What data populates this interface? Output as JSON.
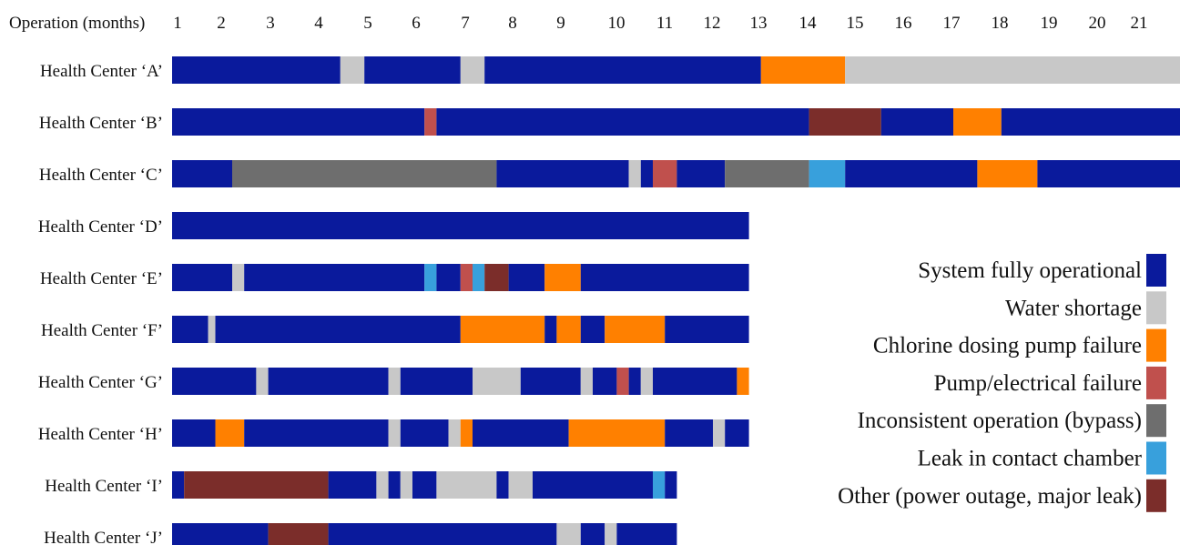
{
  "chart_data": {
    "type": "bar",
    "subtype": "stacked-horizontal-timeline",
    "title": "",
    "xlabel": "Operation (months)",
    "ylabel": "",
    "xlim": [
      1,
      22
    ],
    "x_ticks": [
      1,
      2,
      3,
      4,
      5,
      6,
      7,
      8,
      9,
      10,
      11,
      12,
      13,
      14,
      15,
      16,
      17,
      18,
      19,
      20,
      21
    ],
    "grid": false,
    "legend_position": "bottom-right",
    "statuses": [
      {
        "key": "operational",
        "label": "System fully operational",
        "color": "#0a1a9c"
      },
      {
        "key": "water",
        "label": "Water shortage",
        "color": "#c8c8c8"
      },
      {
        "key": "chlorine",
        "label": "Chlorine dosing pump failure",
        "color": "#ff8000"
      },
      {
        "key": "pump",
        "label": "Pump/electrical failure",
        "color": "#c0504d"
      },
      {
        "key": "bypass",
        "label": "Inconsistent operation (bypass)",
        "color": "#6e6e6e"
      },
      {
        "key": "leak",
        "label": "Leak in contact chamber",
        "color": "#38a0dc"
      },
      {
        "key": "other",
        "label": "Other (power outage, major leak)",
        "color": "#7b2d2a"
      }
    ],
    "rows": [
      {
        "label": "Health Center ‘A’",
        "segments": [
          {
            "start": 1.0,
            "end": 4.5,
            "status": "operational"
          },
          {
            "start": 4.5,
            "end": 5.0,
            "status": "water"
          },
          {
            "start": 5.0,
            "end": 7.0,
            "status": "operational"
          },
          {
            "start": 7.0,
            "end": 7.5,
            "status": "water"
          },
          {
            "start": 7.5,
            "end": 13.25,
            "status": "operational"
          },
          {
            "start": 13.25,
            "end": 15.0,
            "status": "chlorine"
          },
          {
            "start": 15.0,
            "end": 22.0,
            "status": "water"
          }
        ]
      },
      {
        "label": "Health Center ‘B’",
        "segments": [
          {
            "start": 1.0,
            "end": 6.25,
            "status": "operational"
          },
          {
            "start": 6.25,
            "end": 6.5,
            "status": "pump"
          },
          {
            "start": 6.5,
            "end": 14.25,
            "status": "operational"
          },
          {
            "start": 14.25,
            "end": 15.75,
            "status": "other"
          },
          {
            "start": 15.75,
            "end": 17.25,
            "status": "operational"
          },
          {
            "start": 17.25,
            "end": 18.25,
            "status": "chlorine"
          },
          {
            "start": 18.25,
            "end": 22.0,
            "status": "operational"
          }
        ]
      },
      {
        "label": "Health Center ‘C’",
        "segments": [
          {
            "start": 1.0,
            "end": 2.25,
            "status": "operational"
          },
          {
            "start": 2.25,
            "end": 7.75,
            "status": "bypass"
          },
          {
            "start": 7.75,
            "end": 10.5,
            "status": "operational"
          },
          {
            "start": 10.5,
            "end": 10.75,
            "status": "water"
          },
          {
            "start": 10.75,
            "end": 11.0,
            "status": "operational"
          },
          {
            "start": 11.0,
            "end": 11.5,
            "status": "pump"
          },
          {
            "start": 11.5,
            "end": 12.5,
            "status": "operational"
          },
          {
            "start": 12.5,
            "end": 14.25,
            "status": "bypass"
          },
          {
            "start": 14.25,
            "end": 15.0,
            "status": "leak"
          },
          {
            "start": 15.0,
            "end": 17.75,
            "status": "operational"
          },
          {
            "start": 17.75,
            "end": 19.0,
            "status": "chlorine"
          },
          {
            "start": 19.0,
            "end": 22.0,
            "status": "operational"
          }
        ]
      },
      {
        "label": "Health Center ‘D’",
        "segments": [
          {
            "start": 1.0,
            "end": 13.0,
            "status": "operational"
          }
        ]
      },
      {
        "label": "Health Center ‘E’",
        "segments": [
          {
            "start": 1.0,
            "end": 2.25,
            "status": "operational"
          },
          {
            "start": 2.25,
            "end": 2.5,
            "status": "water"
          },
          {
            "start": 2.5,
            "end": 6.25,
            "status": "operational"
          },
          {
            "start": 6.25,
            "end": 6.5,
            "status": "leak"
          },
          {
            "start": 6.5,
            "end": 7.0,
            "status": "operational"
          },
          {
            "start": 7.0,
            "end": 7.25,
            "status": "pump"
          },
          {
            "start": 7.25,
            "end": 7.5,
            "status": "leak"
          },
          {
            "start": 7.5,
            "end": 8.0,
            "status": "other"
          },
          {
            "start": 8.0,
            "end": 8.75,
            "status": "operational"
          },
          {
            "start": 8.75,
            "end": 9.5,
            "status": "chlorine"
          },
          {
            "start": 9.5,
            "end": 13.0,
            "status": "operational"
          }
        ]
      },
      {
        "label": "Health Center ‘F’",
        "segments": [
          {
            "start": 1.0,
            "end": 1.75,
            "status": "operational"
          },
          {
            "start": 1.75,
            "end": 1.9,
            "status": "water"
          },
          {
            "start": 1.9,
            "end": 7.0,
            "status": "operational"
          },
          {
            "start": 7.0,
            "end": 8.75,
            "status": "chlorine"
          },
          {
            "start": 8.75,
            "end": 9.0,
            "status": "operational"
          },
          {
            "start": 9.0,
            "end": 9.5,
            "status": "chlorine"
          },
          {
            "start": 9.5,
            "end": 10.0,
            "status": "operational"
          },
          {
            "start": 10.0,
            "end": 11.25,
            "status": "chlorine"
          },
          {
            "start": 11.25,
            "end": 13.0,
            "status": "operational"
          }
        ]
      },
      {
        "label": "Health Center ‘G’",
        "segments": [
          {
            "start": 1.0,
            "end": 2.75,
            "status": "operational"
          },
          {
            "start": 2.75,
            "end": 3.0,
            "status": "water"
          },
          {
            "start": 3.0,
            "end": 5.5,
            "status": "operational"
          },
          {
            "start": 5.5,
            "end": 5.75,
            "status": "water"
          },
          {
            "start": 5.75,
            "end": 7.25,
            "status": "operational"
          },
          {
            "start": 7.25,
            "end": 8.25,
            "status": "water"
          },
          {
            "start": 8.25,
            "end": 9.5,
            "status": "operational"
          },
          {
            "start": 9.5,
            "end": 9.75,
            "status": "water"
          },
          {
            "start": 9.75,
            "end": 10.25,
            "status": "operational"
          },
          {
            "start": 10.25,
            "end": 10.5,
            "status": "pump"
          },
          {
            "start": 10.5,
            "end": 10.75,
            "status": "operational"
          },
          {
            "start": 10.75,
            "end": 11.0,
            "status": "water"
          },
          {
            "start": 11.0,
            "end": 12.75,
            "status": "operational"
          },
          {
            "start": 12.75,
            "end": 13.0,
            "status": "chlorine"
          }
        ]
      },
      {
        "label": "Health Center ‘H’",
        "segments": [
          {
            "start": 1.0,
            "end": 1.9,
            "status": "operational"
          },
          {
            "start": 1.9,
            "end": 2.5,
            "status": "chlorine"
          },
          {
            "start": 2.5,
            "end": 5.5,
            "status": "operational"
          },
          {
            "start": 5.5,
            "end": 5.75,
            "status": "water"
          },
          {
            "start": 5.75,
            "end": 6.75,
            "status": "operational"
          },
          {
            "start": 6.75,
            "end": 7.0,
            "status": "water"
          },
          {
            "start": 7.0,
            "end": 7.25,
            "status": "chlorine"
          },
          {
            "start": 7.25,
            "end": 9.25,
            "status": "operational"
          },
          {
            "start": 9.25,
            "end": 11.25,
            "status": "chlorine"
          },
          {
            "start": 11.25,
            "end": 12.25,
            "status": "operational"
          },
          {
            "start": 12.25,
            "end": 12.5,
            "status": "water"
          },
          {
            "start": 12.5,
            "end": 13.0,
            "status": "operational"
          }
        ]
      },
      {
        "label": "Health Center ‘I’",
        "segments": [
          {
            "start": 1.0,
            "end": 1.25,
            "status": "operational"
          },
          {
            "start": 1.25,
            "end": 4.25,
            "status": "other"
          },
          {
            "start": 4.25,
            "end": 5.25,
            "status": "operational"
          },
          {
            "start": 5.25,
            "end": 5.5,
            "status": "water"
          },
          {
            "start": 5.5,
            "end": 5.75,
            "status": "operational"
          },
          {
            "start": 5.75,
            "end": 6.0,
            "status": "water"
          },
          {
            "start": 6.0,
            "end": 6.5,
            "status": "operational"
          },
          {
            "start": 6.5,
            "end": 7.75,
            "status": "water"
          },
          {
            "start": 7.75,
            "end": 8.0,
            "status": "operational"
          },
          {
            "start": 8.0,
            "end": 8.5,
            "status": "water"
          },
          {
            "start": 8.5,
            "end": 11.0,
            "status": "operational"
          },
          {
            "start": 11.0,
            "end": 11.25,
            "status": "leak"
          },
          {
            "start": 11.25,
            "end": 11.5,
            "status": "operational"
          }
        ]
      },
      {
        "label": "Health Center ‘J’",
        "segments": [
          {
            "start": 1.0,
            "end": 3.0,
            "status": "operational"
          },
          {
            "start": 3.0,
            "end": 4.25,
            "status": "other"
          },
          {
            "start": 4.25,
            "end": 9.0,
            "status": "operational"
          },
          {
            "start": 9.0,
            "end": 9.5,
            "status": "water"
          },
          {
            "start": 9.5,
            "end": 10.0,
            "status": "operational"
          },
          {
            "start": 10.0,
            "end": 10.25,
            "status": "water"
          },
          {
            "start": 10.25,
            "end": 11.5,
            "status": "operational"
          }
        ]
      }
    ]
  }
}
